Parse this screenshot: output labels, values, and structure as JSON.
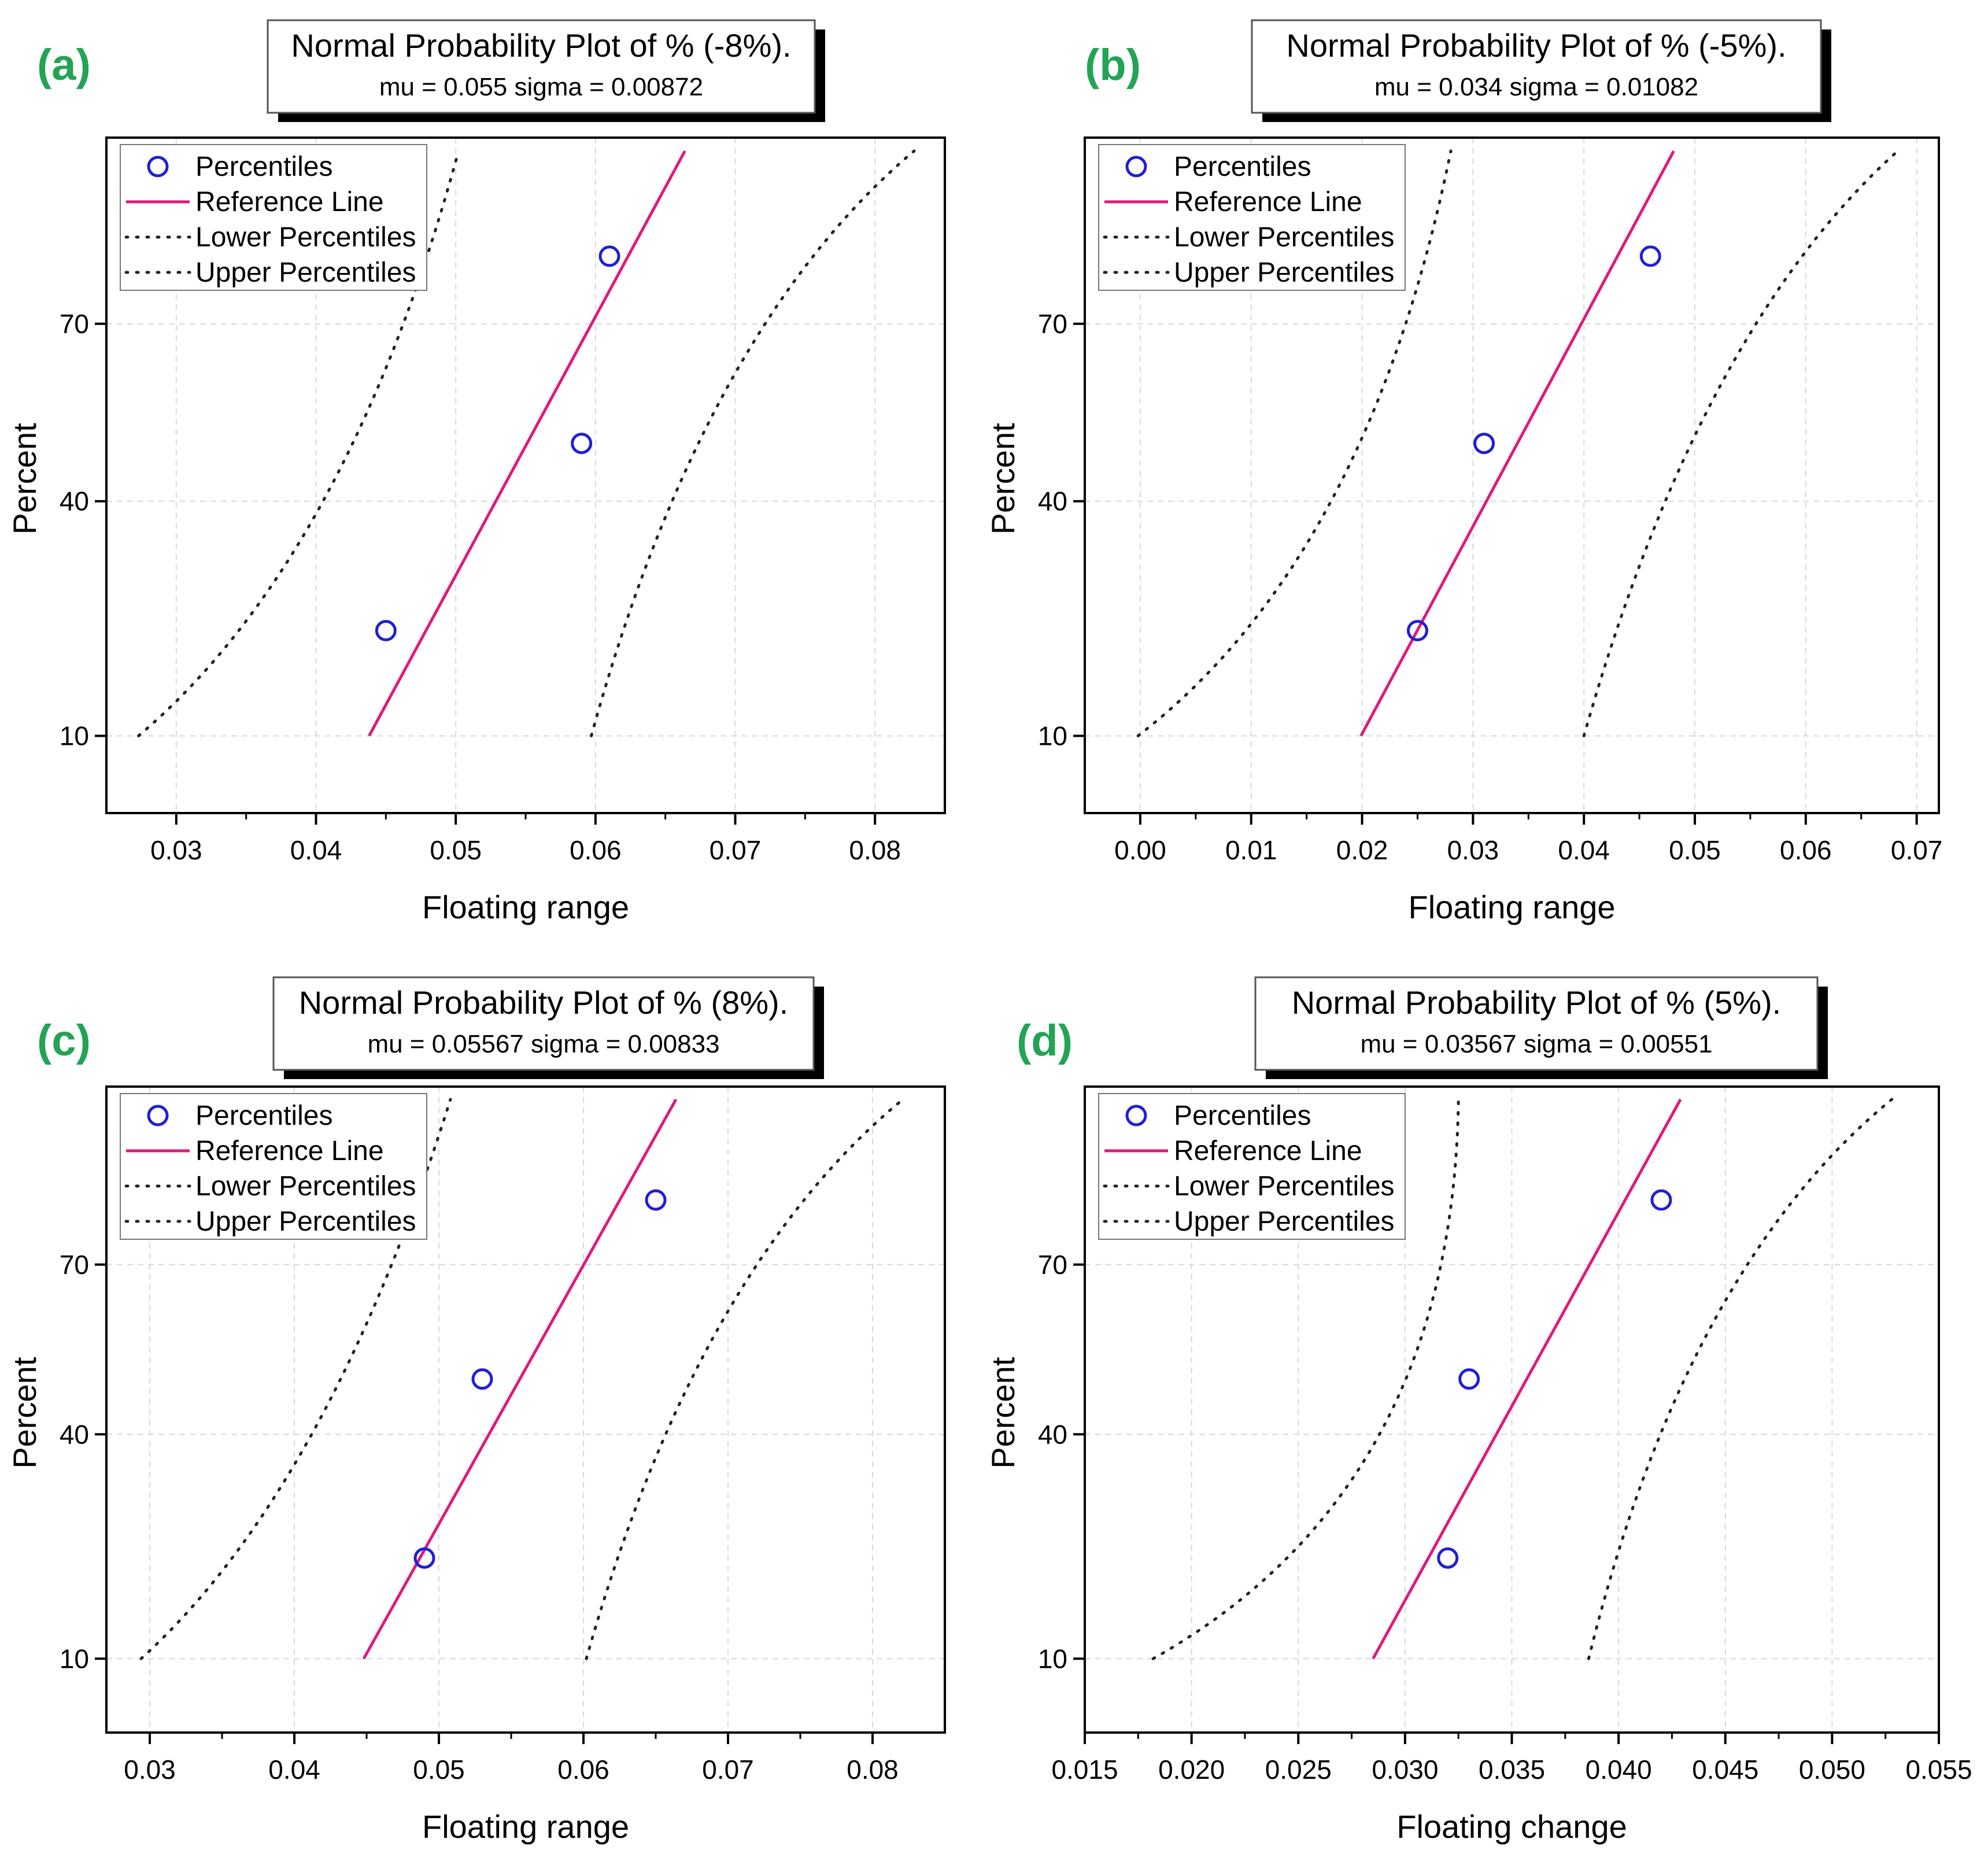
{
  "figure": {
    "colors": {
      "panel_label": "#23a455",
      "marker": "#1f1fd6",
      "reference_line": "#e0197d",
      "bound_line": "#222222",
      "grid": "#d9d9d9",
      "axis": "#000000"
    },
    "legend": {
      "percentiles": "Percentiles",
      "reference_line": "Reference Line",
      "lower_percentiles": "Lower Percentiles",
      "upper_percentiles": "Upper Percentiles"
    }
  },
  "chart_data": [
    {
      "panel": "(a)",
      "type": "scatter",
      "title": "Normal Probability Plot of % (-8%).",
      "subtitle": "mu = 0.055  sigma = 0.00872",
      "xlabel": "Floating range",
      "ylabel": "Percent",
      "xlim": [
        0.025,
        0.085
      ],
      "x_ticks": [
        0.03,
        0.04,
        0.05,
        0.06,
        0.07,
        0.08
      ],
      "x_tick_labels": [
        "0.03",
        "0.04",
        "0.05",
        "0.06",
        "0.07",
        "0.08"
      ],
      "y_ticks": [
        10,
        40,
        70
      ],
      "y_tick_labels": [
        "10",
        "40",
        "70"
      ],
      "grid": true,
      "legend_position": "top-left",
      "percentiles": {
        "x": [
          0.045,
          0.059,
          0.061
        ],
        "y": [
          20.6,
          50,
          79.4
        ]
      },
      "reference_line": {
        "x": [
          0.0438,
          0.0664
        ],
        "p": [
          10,
          90
        ]
      },
      "lower_percentiles": {
        "x": [
          0.0273,
          0.0405,
          0.0502
        ],
        "p": [
          10,
          40,
          90
        ]
      },
      "upper_percentiles": {
        "x": [
          0.0597,
          0.0695,
          0.0828
        ],
        "p": [
          10,
          60,
          90
        ]
      }
    },
    {
      "panel": "(b)",
      "type": "scatter",
      "title": "Normal Probability Plot of % (-5%).",
      "subtitle": "mu = 0.034  sigma = 0.01082",
      "xlabel": "Floating range",
      "ylabel": "Percent",
      "xlim": [
        -0.005,
        0.072
      ],
      "x_ticks": [
        0.0,
        0.01,
        0.02,
        0.03,
        0.04,
        0.05,
        0.06,
        0.07
      ],
      "x_tick_labels": [
        "0.00",
        "0.01",
        "0.02",
        "0.03",
        "0.04",
        "0.05",
        "0.06",
        "0.07"
      ],
      "y_ticks": [
        10,
        40,
        70
      ],
      "y_tick_labels": [
        "10",
        "40",
        "70"
      ],
      "grid": true,
      "legend_position": "top-left",
      "percentiles": {
        "x": [
          0.025,
          0.031,
          0.046
        ],
        "y": [
          20.6,
          50,
          79.4
        ]
      },
      "reference_line": {
        "x": [
          0.0199,
          0.0481
        ],
        "p": [
          10,
          90
        ]
      },
      "lower_percentiles": {
        "x": [
          -0.0002,
          0.0172,
          0.028
        ],
        "p": [
          10,
          40,
          90
        ]
      },
      "upper_percentiles": {
        "x": [
          0.04,
          0.0523,
          0.0683
        ],
        "p": [
          10,
          60,
          90
        ]
      }
    },
    {
      "panel": "(c)",
      "type": "scatter",
      "title": "Normal Probability Plot of % (8%).",
      "subtitle": "mu = 0.05567  sigma = 0.00833",
      "xlabel": "Floating range",
      "ylabel": "Percent",
      "xlim": [
        0.027,
        0.085
      ],
      "x_ticks": [
        0.03,
        0.04,
        0.05,
        0.06,
        0.07,
        0.08
      ],
      "x_tick_labels": [
        "0.03",
        "0.04",
        "0.05",
        "0.06",
        "0.07",
        "0.08"
      ],
      "y_ticks": [
        10,
        40,
        70
      ],
      "y_tick_labels": [
        "10",
        "40",
        "70"
      ],
      "grid": true,
      "legend_position": "top-left",
      "percentiles": {
        "x": [
          0.049,
          0.053,
          0.065
        ],
        "y": [
          20.6,
          50,
          79.4
        ]
      },
      "reference_line": {
        "x": [
          0.0448,
          0.0664
        ],
        "p": [
          10,
          90
        ]
      },
      "lower_percentiles": {
        "x": [
          0.0294,
          0.0412,
          0.0508
        ],
        "p": [
          10,
          40,
          90
        ]
      },
      "upper_percentiles": {
        "x": [
          0.0602,
          0.0695,
          0.0821
        ],
        "p": [
          10,
          60,
          90
        ]
      }
    },
    {
      "panel": "(d)",
      "type": "scatter",
      "title": "Normal Probability Plot of % (5%).",
      "subtitle": "mu = 0.03567  sigma = 0.00551",
      "xlabel": "Floating change",
      "ylabel": "Percent",
      "xlim": [
        0.015,
        0.055
      ],
      "x_ticks": [
        0.015,
        0.02,
        0.025,
        0.03,
        0.035,
        0.04,
        0.045,
        0.05,
        0.055
      ],
      "x_tick_labels": [
        "0.015",
        "0.020",
        "0.025",
        "0.030",
        "0.035",
        "0.040",
        "0.045",
        "0.050",
        "0.055"
      ],
      "y_ticks": [
        10,
        40,
        70
      ],
      "y_tick_labels": [
        "10",
        "40",
        "70"
      ],
      "grid": true,
      "legend_position": "top-left",
      "percentiles": {
        "x": [
          0.032,
          0.033,
          0.042
        ],
        "y": [
          20.6,
          50,
          79.4
        ]
      },
      "reference_line": {
        "x": [
          0.0285,
          0.0429
        ],
        "p": [
          10,
          90
        ]
      },
      "lower_percentiles": {
        "x": [
          0.0182,
          0.0288,
          0.0325
        ],
        "p": [
          10,
          40,
          90
        ]
      },
      "upper_percentiles": {
        "x": [
          0.0386,
          0.0444,
          0.0528
        ],
        "p": [
          10,
          60,
          90
        ]
      }
    }
  ]
}
